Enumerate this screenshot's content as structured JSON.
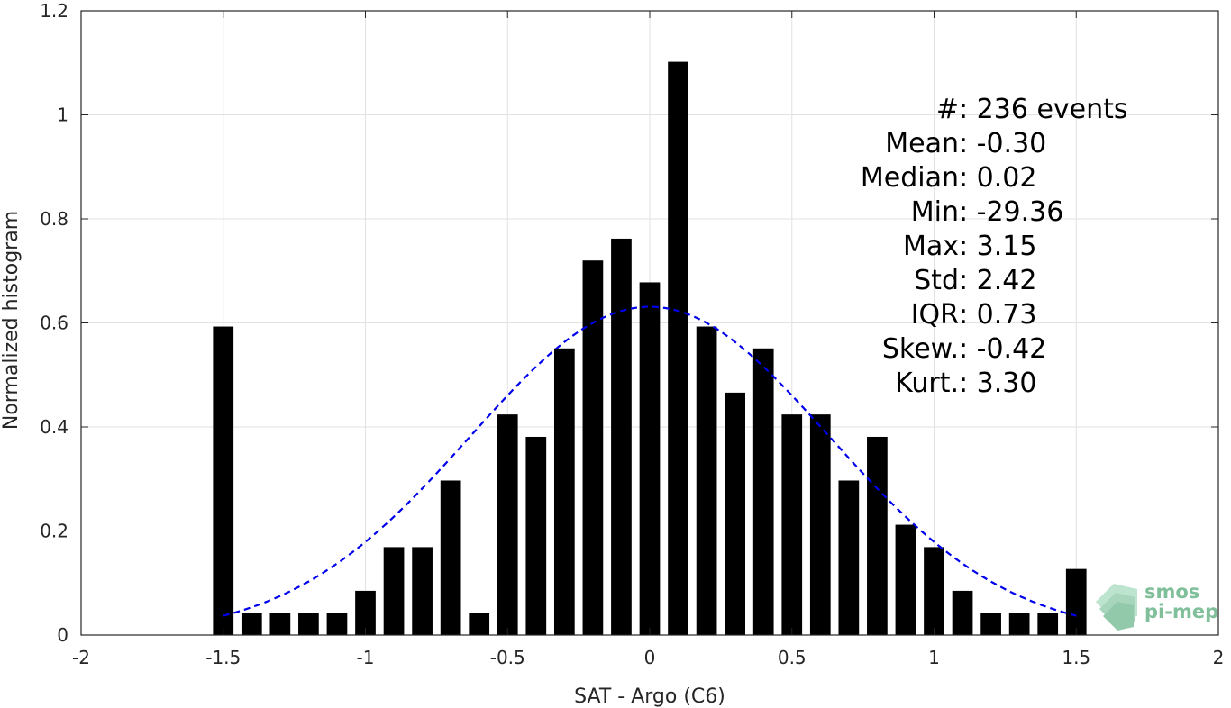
{
  "chart_data": {
    "type": "bar",
    "xlabel": "SAT - Argo (C6)",
    "ylabel": "Normalized histogram",
    "xlim": [
      -2,
      2
    ],
    "ylim": [
      0,
      1.2
    ],
    "xticks": [
      "-2",
      "-1.5",
      "-1",
      "-0.5",
      "0",
      "0.5",
      "1",
      "1.5",
      "2"
    ],
    "yticks": [
      "0",
      "0.2",
      "0.4",
      "0.6",
      "0.8",
      "1",
      "1.2"
    ],
    "grid": true,
    "bar_color": "#000000",
    "bin_width": 0.1,
    "x": [
      -1.5,
      -1.4,
      -1.3,
      -1.2,
      -1.1,
      -1.0,
      -0.9,
      -0.8,
      -0.7,
      -0.6,
      -0.5,
      -0.4,
      -0.3,
      -0.2,
      -0.1,
      0.0,
      0.1,
      0.2,
      0.3,
      0.4,
      0.5,
      0.6,
      0.7,
      0.8,
      0.9,
      1.0,
      1.1,
      1.2,
      1.3,
      1.4,
      1.5
    ],
    "values": [
      0.593,
      0.042,
      0.042,
      0.042,
      0.042,
      0.085,
      0.169,
      0.169,
      0.297,
      0.042,
      0.424,
      0.381,
      0.551,
      0.72,
      0.762,
      0.678,
      1.102,
      0.593,
      0.466,
      0.551,
      0.424,
      0.424,
      0.297,
      0.381,
      0.212,
      0.169,
      0.085,
      0.042,
      0.042,
      0.042,
      0.127
    ],
    "fit_curve": {
      "type": "gaussian",
      "mu": 0.0,
      "sigma": 0.63,
      "peak": 0.631,
      "x_range": [
        -1.5,
        1.5
      ],
      "color": "#0000ee",
      "style": "dashed"
    },
    "annotations": [
      {
        "label": "#  ",
        "value": ": 236 events"
      },
      {
        "label": "Mean ",
        "value": ": -0.30"
      },
      {
        "label": "Median ",
        "value": ": 0.02"
      },
      {
        "label": "Min ",
        "value": ": -29.36"
      },
      {
        "label": "Max ",
        "value": ": 3.15"
      },
      {
        "label": "Std ",
        "value": ": 2.42"
      },
      {
        "label": "IQR ",
        "value": ": 0.73"
      },
      {
        "label": "Skew. ",
        "value": ": -0.42"
      },
      {
        "label": "Kurt. ",
        "value": ": 3.30"
      }
    ]
  },
  "logo": {
    "line1": "smos",
    "line2": "pi-mep",
    "color": "#7fbf9a"
  }
}
